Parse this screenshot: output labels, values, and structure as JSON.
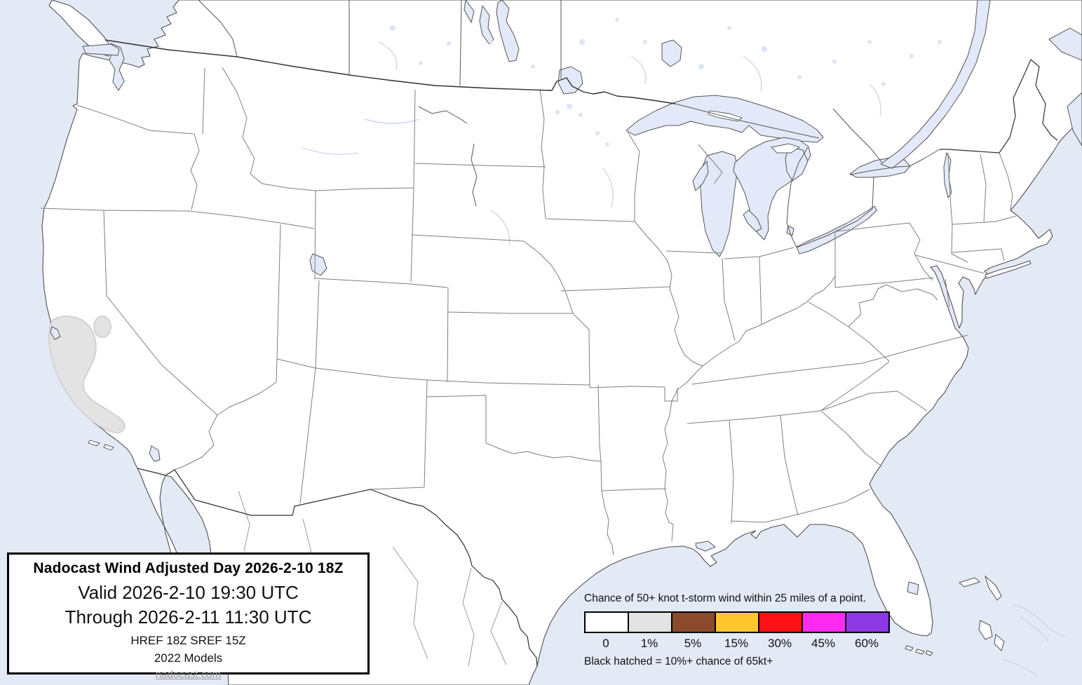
{
  "map": {
    "region": "Continental United States with southern Canada and northern Mexico",
    "colors": {
      "water": "#E4E9F6",
      "land": "#FFFFFF",
      "lakes": "#E3E9F8",
      "coastline": "#4F4F4F",
      "state_border": "#7E7E7E",
      "country_border": "#2F2F2F",
      "probability_1pct_fill": "#E3E3E3",
      "probability_1pct_edge": "#D2D2D2"
    },
    "probability_areas": [
      {
        "level": "1%",
        "location": "Central California coast (large area)"
      },
      {
        "level": "1%",
        "location": "Northern California interior (small oval)"
      }
    ]
  },
  "title_box": {
    "line1": "Nadocast Wind Adjusted Day 2026-2-10 18Z",
    "line2": "Valid 2026-2-10 19:30 UTC",
    "line3": "Through 2026-2-11 11:30 UTC",
    "line4": "HREF 18Z SREF 15Z",
    "line5": "2022 Models",
    "link": "nadocast.com"
  },
  "legend": {
    "title": "Chance of 50+ knot t-storm wind within 25 miles of a point.",
    "entries": [
      {
        "label": "0",
        "color": "#FFFFFF"
      },
      {
        "label": "1%",
        "color": "#E3E3E3"
      },
      {
        "label": "5%",
        "color": "#8B4A2B"
      },
      {
        "label": "15%",
        "color": "#FFC72F"
      },
      {
        "label": "30%",
        "color": "#FB1116"
      },
      {
        "label": "45%",
        "color": "#FD2BF2"
      },
      {
        "label": "60%",
        "color": "#8C38E5"
      }
    ],
    "footnote": "Black hatched = 10%+ chance of 65kt+"
  }
}
